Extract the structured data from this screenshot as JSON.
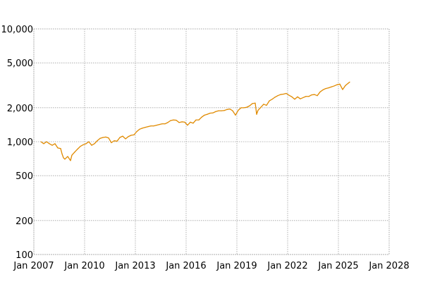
{
  "chart_data": {
    "type": "line",
    "title": "",
    "xlabel": "",
    "ylabel": "",
    "y_scale": "log",
    "ylim": [
      100,
      10000
    ],
    "xlim": [
      "2007-01",
      "2028-01"
    ],
    "grid": true,
    "legend": "none",
    "y_ticks": [
      {
        "value": 100,
        "label": "100"
      },
      {
        "value": 200,
        "label": "200"
      },
      {
        "value": 500,
        "label": "500"
      },
      {
        "value": 1000,
        "label": "1,000"
      },
      {
        "value": 2000,
        "label": "2,000"
      },
      {
        "value": 5000,
        "label": "5,000"
      },
      {
        "value": 10000,
        "label": "10,000"
      }
    ],
    "x_ticks": [
      {
        "value": "2007-01",
        "label": "Jan 2007"
      },
      {
        "value": "2010-01",
        "label": "Jan 2010"
      },
      {
        "value": "2013-01",
        "label": "Jan 2013"
      },
      {
        "value": "2016-01",
        "label": "Jan 2016"
      },
      {
        "value": "2019-01",
        "label": "Jan 2019"
      },
      {
        "value": "2022-01",
        "label": "Jan 2022"
      },
      {
        "value": "2025-01",
        "label": "Jan 2025"
      },
      {
        "value": "2028-01",
        "label": "Jan 2028"
      }
    ],
    "series": [
      {
        "color": "#e08a00",
        "points": [
          [
            "2007-06",
            1000
          ],
          [
            "2007-08",
            960
          ],
          [
            "2007-10",
            1000
          ],
          [
            "2007-12",
            960
          ],
          [
            "2008-02",
            930
          ],
          [
            "2008-04",
            960
          ],
          [
            "2008-06",
            880
          ],
          [
            "2008-08",
            870
          ],
          [
            "2008-09",
            780
          ],
          [
            "2008-10",
            720
          ],
          [
            "2008-11",
            700
          ],
          [
            "2008-12",
            720
          ],
          [
            "2009-01",
            740
          ],
          [
            "2009-03",
            680
          ],
          [
            "2009-04",
            760
          ],
          [
            "2009-06",
            810
          ],
          [
            "2009-08",
            860
          ],
          [
            "2009-10",
            910
          ],
          [
            "2009-12",
            940
          ],
          [
            "2010-02",
            960
          ],
          [
            "2010-04",
            1000
          ],
          [
            "2010-06",
            930
          ],
          [
            "2010-08",
            960
          ],
          [
            "2010-10",
            1020
          ],
          [
            "2010-12",
            1070
          ],
          [
            "2011-02",
            1090
          ],
          [
            "2011-04",
            1100
          ],
          [
            "2011-06",
            1080
          ],
          [
            "2011-08",
            980
          ],
          [
            "2011-10",
            1020
          ],
          [
            "2011-12",
            1010
          ],
          [
            "2012-02",
            1090
          ],
          [
            "2012-04",
            1120
          ],
          [
            "2012-06",
            1060
          ],
          [
            "2012-08",
            1110
          ],
          [
            "2012-10",
            1140
          ],
          [
            "2012-12",
            1150
          ],
          [
            "2013-02",
            1230
          ],
          [
            "2013-04",
            1290
          ],
          [
            "2013-06",
            1320
          ],
          [
            "2013-08",
            1340
          ],
          [
            "2013-10",
            1360
          ],
          [
            "2013-12",
            1380
          ],
          [
            "2014-02",
            1380
          ],
          [
            "2014-04",
            1400
          ],
          [
            "2014-06",
            1420
          ],
          [
            "2014-08",
            1440
          ],
          [
            "2014-10",
            1440
          ],
          [
            "2014-12",
            1480
          ],
          [
            "2015-02",
            1540
          ],
          [
            "2015-04",
            1560
          ],
          [
            "2015-06",
            1550
          ],
          [
            "2015-08",
            1480
          ],
          [
            "2015-10",
            1500
          ],
          [
            "2015-12",
            1490
          ],
          [
            "2016-02",
            1400
          ],
          [
            "2016-04",
            1490
          ],
          [
            "2016-06",
            1460
          ],
          [
            "2016-08",
            1560
          ],
          [
            "2016-10",
            1560
          ],
          [
            "2016-12",
            1650
          ],
          [
            "2017-02",
            1720
          ],
          [
            "2017-04",
            1750
          ],
          [
            "2017-06",
            1790
          ],
          [
            "2017-08",
            1800
          ],
          [
            "2017-10",
            1850
          ],
          [
            "2017-12",
            1880
          ],
          [
            "2018-02",
            1880
          ],
          [
            "2018-04",
            1890
          ],
          [
            "2018-06",
            1930
          ],
          [
            "2018-08",
            1950
          ],
          [
            "2018-10",
            1880
          ],
          [
            "2018-12",
            1720
          ],
          [
            "2019-02",
            1900
          ],
          [
            "2019-04",
            2000
          ],
          [
            "2019-06",
            2000
          ],
          [
            "2019-08",
            2020
          ],
          [
            "2019-10",
            2080
          ],
          [
            "2019-12",
            2180
          ],
          [
            "2020-02",
            2200
          ],
          [
            "2020-03",
            1750
          ],
          [
            "2020-04",
            1900
          ],
          [
            "2020-06",
            2020
          ],
          [
            "2020-08",
            2150
          ],
          [
            "2020-10",
            2100
          ],
          [
            "2020-12",
            2300
          ],
          [
            "2021-02",
            2380
          ],
          [
            "2021-04",
            2480
          ],
          [
            "2021-06",
            2560
          ],
          [
            "2021-08",
            2620
          ],
          [
            "2021-10",
            2640
          ],
          [
            "2021-12",
            2680
          ],
          [
            "2022-02",
            2580
          ],
          [
            "2022-04",
            2500
          ],
          [
            "2022-06",
            2380
          ],
          [
            "2022-08",
            2500
          ],
          [
            "2022-10",
            2400
          ],
          [
            "2022-12",
            2460
          ],
          [
            "2023-02",
            2520
          ],
          [
            "2023-04",
            2520
          ],
          [
            "2023-06",
            2600
          ],
          [
            "2023-08",
            2620
          ],
          [
            "2023-10",
            2560
          ],
          [
            "2023-12",
            2760
          ],
          [
            "2024-02",
            2880
          ],
          [
            "2024-04",
            2960
          ],
          [
            "2024-06",
            3000
          ],
          [
            "2024-08",
            3060
          ],
          [
            "2024-10",
            3120
          ],
          [
            "2024-12",
            3200
          ],
          [
            "2025-02",
            3240
          ],
          [
            "2025-04",
            2900
          ],
          [
            "2025-06",
            3150
          ],
          [
            "2025-08",
            3300
          ],
          [
            "2025-09",
            3380
          ]
        ]
      }
    ]
  }
}
